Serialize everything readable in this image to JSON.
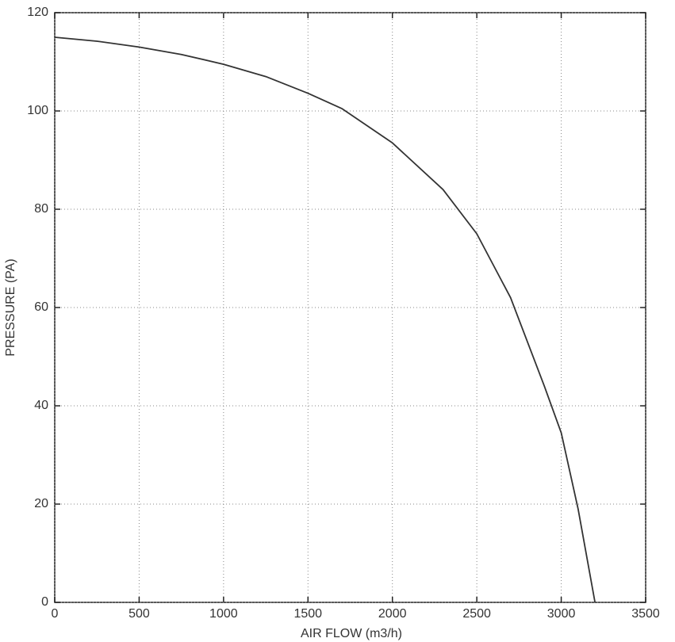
{
  "chart_data": {
    "type": "line",
    "x_label": "AIR FLOW (m3/h)",
    "y_label": "PRESSURE (PA)",
    "series": [
      {
        "color": "#333333",
        "x": [
          0,
          250,
          500,
          750,
          1000,
          1250,
          1500,
          1700,
          2000,
          2300,
          2500,
          2700,
          2900,
          3000,
          3100,
          3200
        ],
        "values": [
          115,
          114.2,
          113,
          111.5,
          109.5,
          107,
          103.6,
          100.5,
          93.5,
          84,
          75,
          62,
          44,
          34.5,
          19,
          0
        ]
      }
    ],
    "xlim": [
      0,
      3500
    ],
    "xticks": [
      0,
      500,
      1000,
      1500,
      2000,
      2500,
      3000,
      3500
    ],
    "ylim": [
      0,
      120
    ],
    "yticks": [
      0,
      20,
      40,
      60,
      80,
      100,
      120
    ],
    "grid": true
  }
}
